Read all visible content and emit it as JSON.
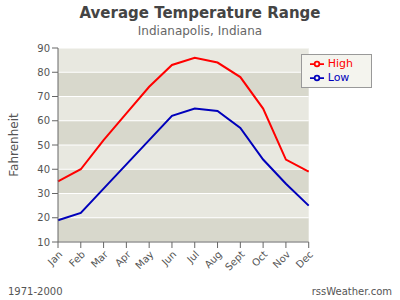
{
  "chart_data": {
    "type": "line",
    "title": "Average Temperature Range",
    "subtitle": "Indianapolis, Indiana",
    "ylabel": "Fahrenheit",
    "categories": [
      "Jan",
      "Feb",
      "Mar",
      "Apr",
      "May",
      "Jun",
      "Jul",
      "Aug",
      "Sept",
      "Oct",
      "Nov",
      "Dec"
    ],
    "series": [
      {
        "name": "High",
        "color": "#ff0000",
        "values": [
          35,
          40,
          52,
          63,
          74,
          83,
          86,
          84,
          78,
          65,
          44,
          39
        ]
      },
      {
        "name": "Low",
        "color": "#0000bb",
        "values": [
          19,
          22,
          32,
          42,
          52,
          62,
          65,
          64,
          57,
          44,
          34,
          25
        ]
      }
    ],
    "ylim": [
      10,
      90
    ],
    "yticks": [
      10,
      20,
      30,
      40,
      50,
      60,
      70,
      80,
      90
    ],
    "grid": true,
    "legend": "upper right",
    "annotations": [
      "1971-2000",
      "rssWeather.com"
    ]
  }
}
